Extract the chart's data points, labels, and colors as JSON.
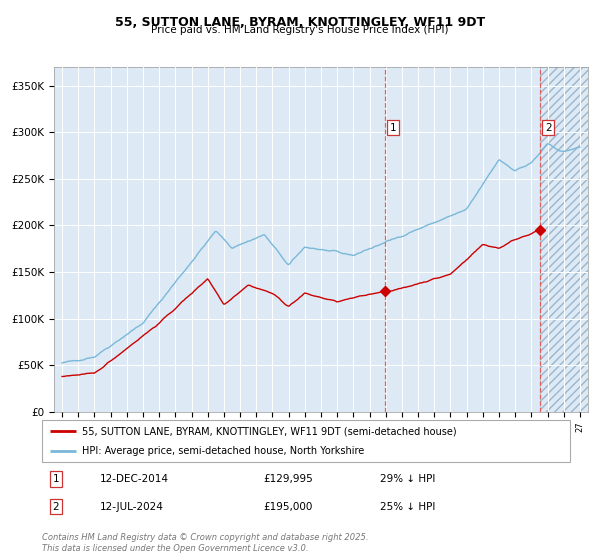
{
  "title": "55, SUTTON LANE, BYRAM, KNOTTINGLEY, WF11 9DT",
  "subtitle": "Price paid vs. HM Land Registry's House Price Index (HPI)",
  "legend_line1": "55, SUTTON LANE, BYRAM, KNOTTINGLEY, WF11 9DT (semi-detached house)",
  "legend_line2": "HPI: Average price, semi-detached house, North Yorkshire",
  "footer": "Contains HM Land Registry data © Crown copyright and database right 2025.\nThis data is licensed under the Open Government Licence v3.0.",
  "transaction1_label": "1",
  "transaction1_date": "12-DEC-2014",
  "transaction1_price": "£129,995",
  "transaction1_hpi": "29% ↓ HPI",
  "transaction1_x": 2014.95,
  "transaction1_y": 129995,
  "transaction2_label": "2",
  "transaction2_date": "12-JUL-2024",
  "transaction2_price": "£195,000",
  "transaction2_hpi": "25% ↓ HPI",
  "transaction2_x": 2024.54,
  "transaction2_y": 195000,
  "hpi_color": "#7ab8d9",
  "price_color": "#cc0000",
  "marker_color": "#cc0000",
  "vline_color": "#e06060",
  "bg_color": "#ddeaf5",
  "yticks": [
    0,
    50000,
    100000,
    150000,
    200000,
    250000,
    300000,
    350000
  ],
  "ylim": [
    0,
    370000
  ],
  "xlim_start": 1994.5,
  "xlim_end": 2027.5,
  "future_x_start": 2024.54
}
